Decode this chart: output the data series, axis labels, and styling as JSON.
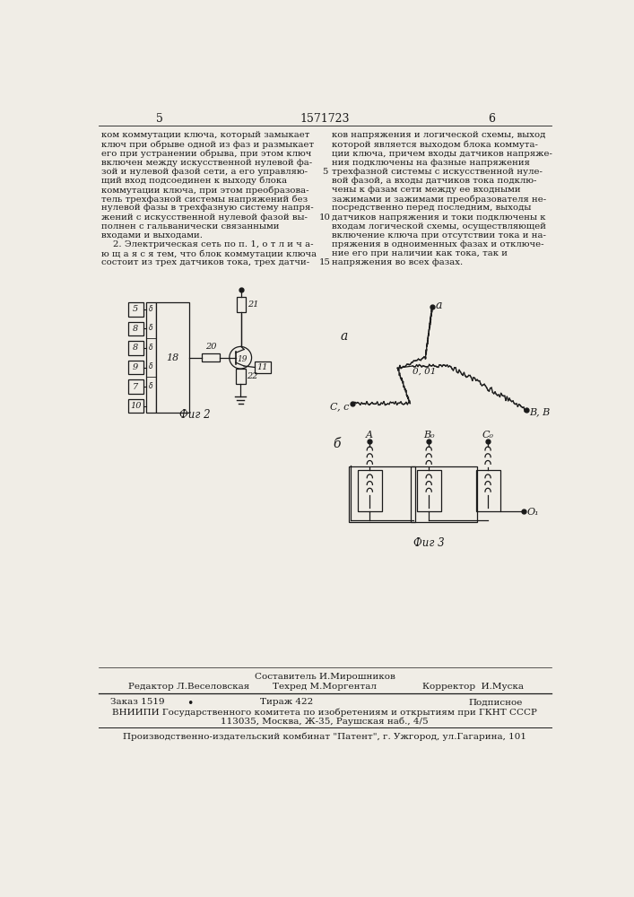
{
  "page_num_left": "5",
  "page_num_center": "1571723",
  "page_num_right": "6",
  "col1_text": [
    "ком коммутации ключа, который замыкает",
    "ключ при обрыве одной из фаз и размыкает",
    "его при устранении обрыва, при этом ключ",
    "включен между искусственной нулевой фа-",
    "зой и нулевой фазой сети, а его управляю-",
    "щий вход подсоединен к выходу блока",
    "коммутации ключа, при этом преобразова-",
    "тель трехфазной системы напряжений без",
    "нулевой фазы в трехфазную систему напря-",
    "жений с искусственной нулевой фазой вы-",
    "полнен с гальванически связанными",
    "входами и выходами.",
    "    2. Электрическая сеть по п. 1, о т л и ч а-",
    "ю щ а я с я тем, что блок коммутации ключа",
    "состоит из трех датчиков тока, трех датчи-"
  ],
  "col1_linenums": {
    "4": "5",
    "9": "10",
    "14": "15"
  },
  "col2_text": [
    "ков напряжения и логической схемы, выход",
    "которой является выходом блока коммута-",
    "ции ключа, причем входы датчиков напряже-",
    "ния подключены на фазные напряжения",
    "трехфазной системы с искусственной нуле-",
    "вой фазой, а входы датчиков тока подклю-",
    "чены к фазам сети между ее входными",
    "зажимами и зажимами преобразователя не-",
    "посредственно перед последним, выходы",
    "датчиков напряжения и токи подключены к",
    "входам логической схемы, осуществляющей",
    "включение ключа при отсутствии тока и на-",
    "пряжения в одноименных фазах и отключе-",
    "ние его при наличии как тока, так и",
    "напряжения во всех фазах."
  ],
  "fig2_label": "Фиг 2",
  "fig3_label": "Фиг 3",
  "label_a": "а",
  "label_b": "б",
  "label_phase_a": "а",
  "label_phase_0": "0, 01",
  "label_phase_Bb": "B, B",
  "label_phase_Cc": "C, c",
  "label_A": "A",
  "label_Bo": "B₀",
  "label_Co": "C₀",
  "label_O1": "O₁",
  "footer_editor": "Редактор Л.Веселовская",
  "footer_compiler": "Составитель И.Мирошников",
  "footer_techred": "Техред М.Моргентал",
  "footer_corrector": "Корректор  И.Муска",
  "footer_order": "Заказ 1519",
  "footer_dot": "•",
  "footer_tirazh": "Тираж 422",
  "footer_podpisnoe": "Подписное",
  "footer_vniipи": "ВНИИПИ Государственного комитета по изобретениям и открытиям при ГКНТ СССР",
  "footer_address": "113035, Москва, Ж-35, Раушская наб., 4/5",
  "footer_kombinat": "Производственно-издательский комбинат \"Патент\", г. Ужгород, ул.Гагарина, 101",
  "bg_color": "#f0ede6",
  "text_color": "#1a1a1a",
  "line_color": "#1a1a1a"
}
